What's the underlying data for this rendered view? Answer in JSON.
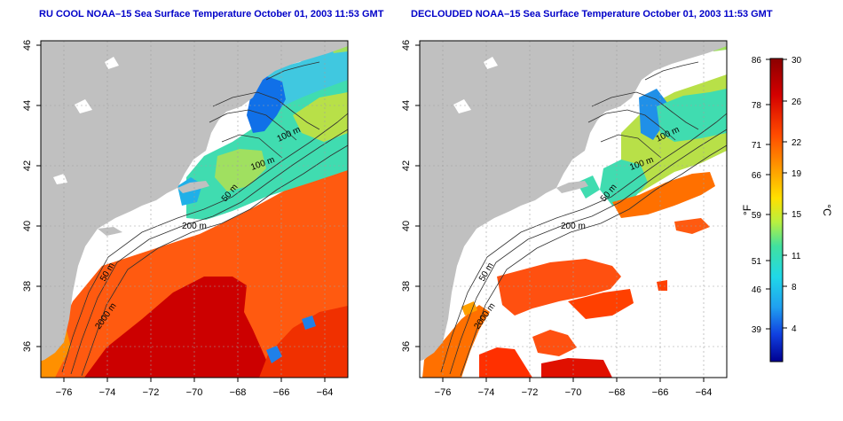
{
  "titles": {
    "left": "RU COOL NOAA–15 Sea Surface Temperature October 01, 2003 11:53 GMT",
    "right": "DECLOUDED NOAA–15 Sea Surface Temperature October 01, 2003 11:53 GMT"
  },
  "axes": {
    "lon_ticks": [
      "−76",
      "−74",
      "−72",
      "−70",
      "−68",
      "−66",
      "−64"
    ],
    "lat_ticks": [
      "36",
      "38",
      "40",
      "42",
      "44",
      "46"
    ]
  },
  "contour_labels": {
    "left": [
      "100 m",
      "100 m",
      "50 m",
      "200 m",
      "50 m",
      "2000 m"
    ],
    "right": [
      "100 m",
      "100 m",
      "50 m",
      "200 m",
      "50 m",
      "2000 m"
    ]
  },
  "colorbar": {
    "fahrenheit_labels": [
      "86",
      "78",
      "71",
      "66",
      "59",
      "51",
      "46",
      "39"
    ],
    "celsius_labels": [
      "30",
      "26",
      "22",
      "19",
      "15",
      "11",
      "8",
      "4"
    ],
    "unit_f": "°F",
    "unit_c": "°C"
  },
  "colors": {
    "title": "#0000c8",
    "land": "#c0c0c0",
    "ocean_clouded": "#ffffff",
    "sst_warm": "#d40000",
    "sst_mid": "#ffd000",
    "sst_cool": "#2fd2c8",
    "sst_cold": "#1a4fe0"
  }
}
